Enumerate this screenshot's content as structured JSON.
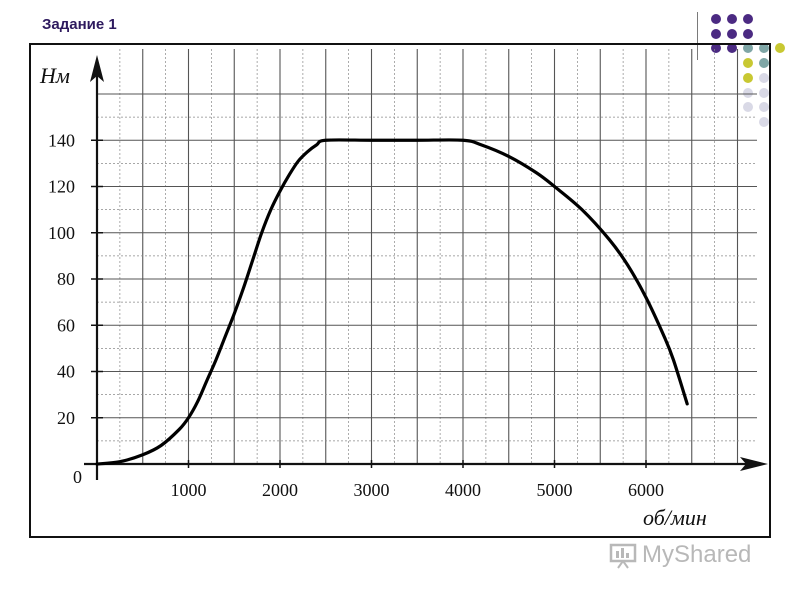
{
  "slide": {
    "title": "Задание 1",
    "decor_colors": [
      "#4b2a82",
      "#7fa6a6",
      "#c8c832",
      "#d9d9e6"
    ]
  },
  "chart_data": {
    "type": "line",
    "title": "",
    "ylabel": "Нм",
    "xlabel": "об/мин",
    "origin_label": "0",
    "xlim": [
      0,
      7000
    ],
    "ylim": [
      0,
      160
    ],
    "x_ticks": [
      1000,
      2000,
      3000,
      4000,
      5000,
      6000
    ],
    "y_ticks": [
      20,
      40,
      60,
      80,
      100,
      120,
      140
    ],
    "grid": true,
    "legend": "none",
    "series": [
      {
        "color": "#000000",
        "points": [
          [
            0,
            0
          ],
          [
            250,
            1
          ],
          [
            500,
            4
          ],
          [
            700,
            8
          ],
          [
            900,
            15
          ],
          [
            1000,
            20
          ],
          [
            1100,
            27
          ],
          [
            1200,
            36
          ],
          [
            1300,
            45
          ],
          [
            1400,
            55
          ],
          [
            1500,
            65
          ],
          [
            1600,
            76
          ],
          [
            1700,
            88
          ],
          [
            1800,
            100
          ],
          [
            1900,
            110
          ],
          [
            2000,
            118
          ],
          [
            2100,
            125
          ],
          [
            2200,
            131
          ],
          [
            2300,
            135
          ],
          [
            2400,
            138
          ],
          [
            2500,
            140
          ],
          [
            3000,
            140
          ],
          [
            3500,
            140
          ],
          [
            4000,
            140
          ],
          [
            4200,
            138
          ],
          [
            4500,
            133
          ],
          [
            4800,
            126
          ],
          [
            5000,
            120
          ],
          [
            5300,
            110
          ],
          [
            5600,
            97
          ],
          [
            5800,
            86
          ],
          [
            6000,
            72
          ],
          [
            6200,
            55
          ],
          [
            6300,
            45
          ],
          [
            6450,
            26
          ]
        ]
      }
    ]
  },
  "watermark": {
    "text": "MyShared"
  }
}
